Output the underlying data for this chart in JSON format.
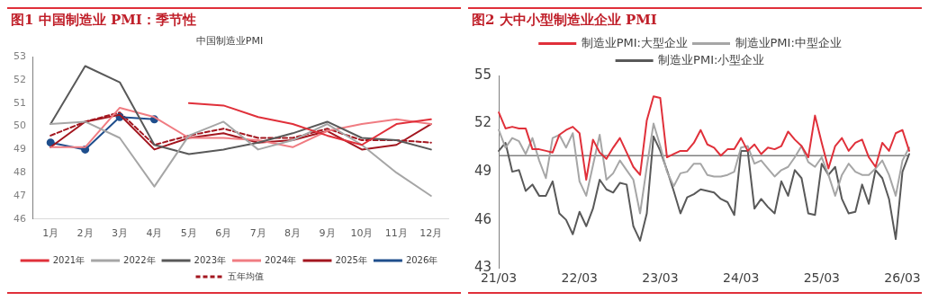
{
  "chart_data": [
    {
      "type": "line",
      "title": "图1  中国制造业 PMI：季节性",
      "subtitle": "中国制造业PMI",
      "categories": [
        "1月",
        "2月",
        "3月",
        "4月",
        "5月",
        "6月",
        "7月",
        "8月",
        "9月",
        "10月",
        "11月",
        "12月"
      ],
      "ylim": [
        46,
        53
      ],
      "yticks": [
        46,
        47,
        48,
        49,
        50,
        51,
        52,
        53
      ],
      "legend": "bottom",
      "series": [
        {
          "name": "2021年",
          "color": "#e0303a",
          "values": [
            null,
            null,
            null,
            null,
            51.0,
            50.9,
            50.4,
            50.1,
            49.6,
            49.2,
            50.1,
            50.3
          ]
        },
        {
          "name": "2022年",
          "color": "#a6a6a6",
          "values": [
            50.1,
            50.2,
            49.5,
            47.4,
            49.6,
            50.2,
            49.0,
            49.4,
            50.1,
            49.2,
            48.0,
            47.0
          ]
        },
        {
          "name": "2023年",
          "color": "#595959",
          "values": [
            50.1,
            52.6,
            51.9,
            49.2,
            48.8,
            49.0,
            49.3,
            49.7,
            50.2,
            49.5,
            49.4,
            49.0
          ]
        },
        {
          "name": "2024年",
          "color": "#f07c82",
          "values": [
            49.1,
            49.1,
            50.8,
            50.4,
            49.5,
            49.5,
            49.4,
            49.1,
            49.8,
            50.1,
            50.3,
            50.1
          ]
        },
        {
          "name": "2025年",
          "color": "#a3161f",
          "values": [
            49.1,
            50.2,
            50.5,
            49.0,
            49.5,
            49.7,
            49.3,
            49.4,
            49.8,
            49.0,
            49.2,
            50.1
          ]
        },
        {
          "name": "2026年",
          "color": "#1f4e8c",
          "marker": "circle",
          "values": [
            49.3,
            49.0,
            50.4,
            50.3,
            null,
            null,
            null,
            null,
            null,
            null,
            null,
            null
          ]
        },
        {
          "name": "五年均值",
          "color": "#a3161f",
          "line_style": "dashed",
          "values": [
            49.6,
            50.2,
            50.6,
            49.2,
            49.6,
            49.9,
            49.5,
            49.5,
            49.9,
            49.4,
            49.4,
            49.3
          ]
        }
      ]
    },
    {
      "type": "line",
      "title": "图2  大中小型制造业企业 PMI",
      "categories": [
        "21/03",
        null,
        null,
        null,
        null,
        null,
        null,
        null,
        null,
        null,
        null,
        null,
        "22/03",
        null,
        null,
        null,
        null,
        null,
        null,
        null,
        null,
        null,
        null,
        null,
        "23/03",
        null,
        null,
        null,
        null,
        null,
        null,
        null,
        null,
        null,
        null,
        null,
        "24/03",
        null,
        null,
        null,
        null,
        null,
        null,
        null,
        null,
        null,
        null,
        null,
        "25/03",
        null,
        null,
        null,
        null,
        null,
        null,
        null,
        null,
        null,
        null,
        null,
        "26/03",
        null
      ],
      "ylim": [
        43,
        55
      ],
      "yticks": [
        43,
        46,
        49,
        52,
        55
      ],
      "legend": "top",
      "ref_lines": [
        {
          "axis": "y",
          "value": 50,
          "color": "#808080"
        }
      ],
      "series": [
        {
          "name": "制造业PMI:大型企业",
          "color": "#e0303a",
          "values": [
            52.7,
            51.7,
            51.8,
            51.7,
            51.7,
            50.4,
            50.4,
            50.3,
            50.2,
            51.3,
            51.6,
            51.8,
            51.4,
            48.5,
            51.0,
            50.2,
            49.8,
            50.5,
            51.1,
            50.2,
            49.3,
            48.8,
            52.2,
            53.7,
            53.6,
            49.9,
            50.1,
            50.3,
            50.3,
            50.8,
            51.6,
            50.7,
            50.5,
            50.0,
            50.4,
            50.4,
            51.1,
            50.3,
            50.7,
            50.1,
            50.5,
            50.4,
            50.6,
            51.5,
            51.0,
            50.6,
            49.9,
            52.5,
            50.8,
            49.2,
            50.6,
            51.1,
            50.3,
            50.8,
            51.0,
            49.9,
            49.3,
            50.8,
            50.3,
            51.4,
            51.6,
            50.3
          ]
        },
        {
          "name": "制造业PMI:中型企业",
          "color": "#a6a6a6",
          "values": [
            51.6,
            50.5,
            51.1,
            50.9,
            50.1,
            51.1,
            49.7,
            48.6,
            51.1,
            51.3,
            50.5,
            51.4,
            48.4,
            47.5,
            49.4,
            51.3,
            48.5,
            48.9,
            49.7,
            49.1,
            48.5,
            46.4,
            49.3,
            52.0,
            50.6,
            49.0,
            48.1,
            48.9,
            49.0,
            49.5,
            49.5,
            48.8,
            48.7,
            48.7,
            48.8,
            49.0,
            50.5,
            50.6,
            49.5,
            49.7,
            49.2,
            48.7,
            49.1,
            49.3,
            49.9,
            50.6,
            49.6,
            49.3,
            49.9,
            48.8,
            47.5,
            48.8,
            49.5,
            49.0,
            48.8,
            48.8,
            49.2,
            49.7,
            48.8,
            47.5,
            49.7,
            50.5
          ]
        },
        {
          "name": "制造业PMI:小型企业",
          "color": "#595959",
          "values": [
            50.3,
            50.8,
            49.0,
            49.1,
            47.8,
            48.2,
            47.5,
            47.5,
            48.4,
            46.4,
            46.0,
            45.1,
            46.5,
            45.6,
            46.7,
            48.5,
            47.9,
            47.7,
            48.3,
            48.2,
            45.6,
            44.7,
            46.4,
            51.2,
            50.3,
            49.1,
            47.8,
            46.4,
            47.4,
            47.6,
            47.9,
            47.8,
            47.7,
            47.3,
            47.1,
            46.3,
            50.3,
            50.3,
            46.7,
            47.3,
            46.8,
            46.4,
            48.4,
            47.5,
            49.1,
            48.6,
            46.4,
            46.3,
            49.5,
            48.8,
            49.3,
            47.3,
            46.4,
            46.5,
            48.2,
            47.0,
            49.1,
            48.6,
            47.3,
            44.8,
            49.0,
            50.1
          ]
        }
      ]
    }
  ]
}
